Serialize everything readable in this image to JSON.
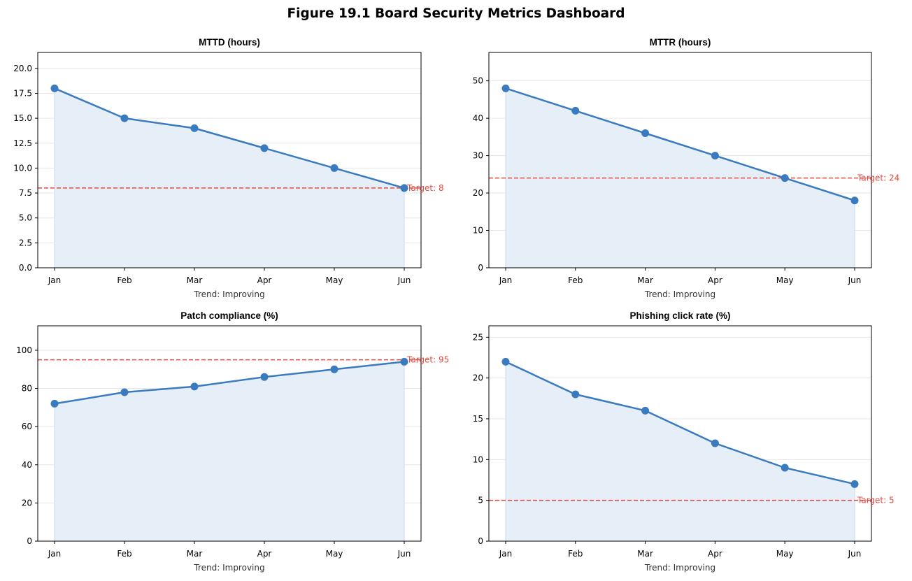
{
  "figure": {
    "title": "Figure 19.1  Board Security Metrics Dashboard"
  },
  "colors": {
    "series": "#3a7bbf",
    "fill": "#e6eef7",
    "target": "#e04a3f",
    "grid": "#e6e6e6"
  },
  "chart_data": [
    {
      "type": "area",
      "title": "MTTD (hours)",
      "xlabel": "Trend: Improving",
      "categories": [
        "Jan",
        "Feb",
        "Mar",
        "Apr",
        "May",
        "Jun"
      ],
      "values": [
        18,
        15,
        14,
        12,
        10,
        8
      ],
      "target": 8,
      "target_label": "Target: 8",
      "ylim": [
        0,
        21.6
      ],
      "yticks": [
        0,
        2.5,
        5,
        7.5,
        10,
        12.5,
        15,
        17.5,
        20
      ],
      "ytick_labels": [
        "0.0",
        "2.5",
        "5.0",
        "7.5",
        "10.0",
        "12.5",
        "15.0",
        "17.5",
        "20.0"
      ],
      "grid": true
    },
    {
      "type": "area",
      "title": "MTTR (hours)",
      "xlabel": "Trend: Improving",
      "categories": [
        "Jan",
        "Feb",
        "Mar",
        "Apr",
        "May",
        "Jun"
      ],
      "values": [
        48,
        42,
        36,
        30,
        24,
        18
      ],
      "target": 24,
      "target_label": "Target: 24",
      "ylim": [
        0,
        57.6
      ],
      "yticks": [
        0,
        10,
        20,
        30,
        40,
        50
      ],
      "ytick_labels": [
        "0",
        "10",
        "20",
        "30",
        "40",
        "50"
      ],
      "grid": true
    },
    {
      "type": "area",
      "title": "Patch compliance (%)",
      "xlabel": "Trend: Improving",
      "categories": [
        "Jan",
        "Feb",
        "Mar",
        "Apr",
        "May",
        "Jun"
      ],
      "values": [
        72,
        78,
        81,
        86,
        90,
        94
      ],
      "target": 95,
      "target_label": "Target: 95",
      "ylim": [
        0,
        112.8
      ],
      "yticks": [
        0,
        20,
        40,
        60,
        80,
        100
      ],
      "ytick_labels": [
        "0",
        "20",
        "40",
        "60",
        "80",
        "100"
      ],
      "grid": true
    },
    {
      "type": "area",
      "title": "Phishing click rate (%)",
      "xlabel": "Trend: Improving",
      "categories": [
        "Jan",
        "Feb",
        "Mar",
        "Apr",
        "May",
        "Jun"
      ],
      "values": [
        22,
        18,
        16,
        12,
        9,
        7
      ],
      "target": 5,
      "target_label": "Target: 5",
      "ylim": [
        0,
        26.4
      ],
      "yticks": [
        0,
        5,
        10,
        15,
        20,
        25
      ],
      "ytick_labels": [
        "0",
        "5",
        "10",
        "15",
        "20",
        "25"
      ],
      "grid": true
    }
  ]
}
